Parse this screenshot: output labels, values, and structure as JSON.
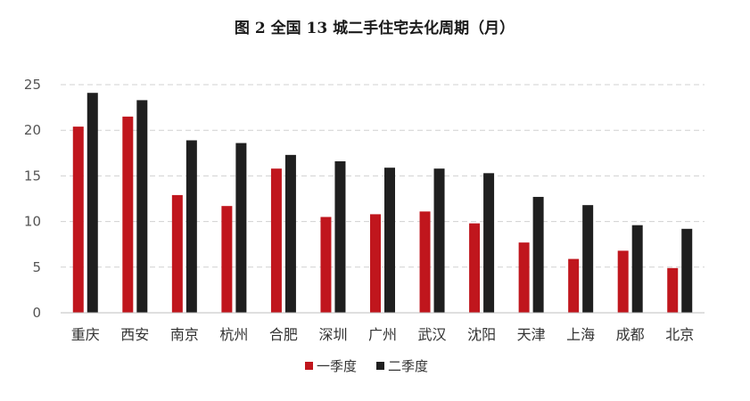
{
  "chart_data": {
    "type": "bar",
    "title": "图 2 全国 13 城二手住宅去化周期（月）",
    "categories": [
      "重庆",
      "西安",
      "南京",
      "杭州",
      "合肥",
      "深圳",
      "广州",
      "武汉",
      "沈阳",
      "天津",
      "上海",
      "成都",
      "北京"
    ],
    "series": [
      {
        "name": "一季度",
        "color": "#c0161d",
        "values": [
          20.4,
          21.5,
          12.9,
          11.7,
          15.8,
          10.5,
          10.8,
          11.1,
          9.8,
          7.7,
          5.9,
          6.8,
          4.9
        ]
      },
      {
        "name": "二季度",
        "color": "#1f1f1f",
        "values": [
          24.1,
          23.3,
          18.9,
          18.6,
          17.3,
          16.6,
          15.9,
          15.8,
          15.3,
          12.7,
          11.8,
          9.6,
          9.2
        ]
      }
    ],
    "ylim": [
      0,
      25
    ],
    "yticks": [
      "0",
      "5",
      "10",
      "15",
      "20",
      "25"
    ],
    "grid": true,
    "grid_style": "dashed",
    "legend_position": "bottom",
    "xlabel": "",
    "ylabel": ""
  }
}
